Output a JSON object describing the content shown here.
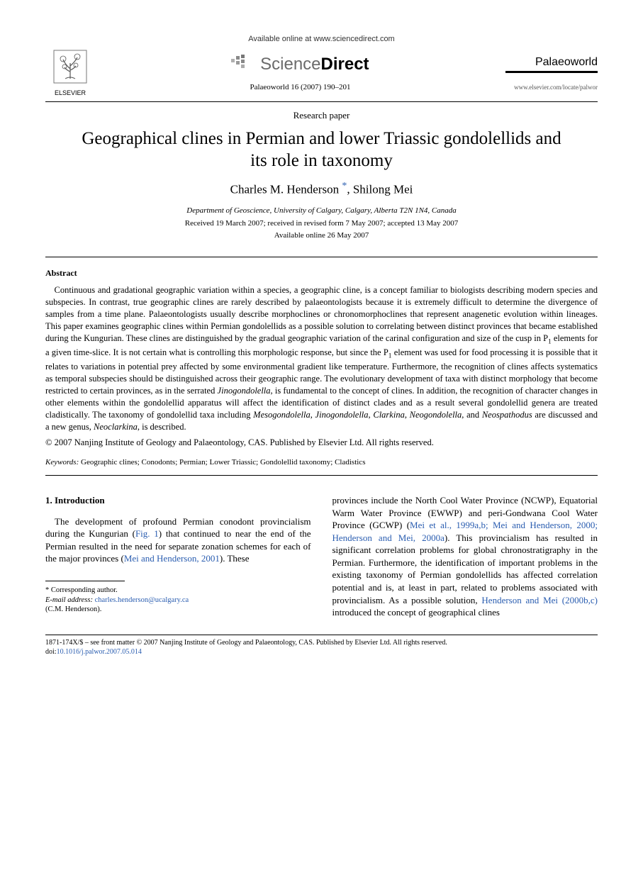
{
  "header": {
    "available_online": "Available online at www.sciencedirect.com",
    "sciencedirect_sci": "Science",
    "sciencedirect_dir": "Direct",
    "elsevier_label": "ELSEVIER",
    "journal_name": "Palaeoworld",
    "journal_ref": "Palaeoworld 16 (2007) 190–201",
    "journal_url": "www.elsevier.com/locate/palwor"
  },
  "paper": {
    "type": "Research paper",
    "title": "Geographical clines in Permian and lower Triassic gondolellids and its role in taxonomy",
    "author1": "Charles M. Henderson",
    "corr_mark": "*",
    "author2": "Shilong Mei",
    "affiliation": "Department of Geoscience, University of Calgary, Calgary, Alberta T2N 1N4, Canada",
    "dates": "Received 19 March 2007; received in revised form 7 May 2007; accepted 13 May 2007",
    "available": "Available online 26 May 2007"
  },
  "abstract": {
    "heading": "Abstract",
    "text": "Continuous and gradational geographic variation within a species, a geographic cline, is a concept familiar to biologists describing modern species and subspecies. In contrast, true geographic clines are rarely described by palaeontologists because it is extremely difficult to determine the divergence of samples from a time plane. Palaeontologists usually describe morphoclines or chronomorphoclines that represent anagenetic evolution within lineages. This paper examines geographic clines within Permian gondolellids as a possible solution to correlating between distinct provinces that became established during the Kungurian. These clines are distinguished by the gradual geographic variation of the carinal configuration and size of the cusp in P₁ elements for a given time-slice. It is not certain what is controlling this morphologic response, but since the P₁ element was used for food processing it is possible that it relates to variations in potential prey affected by some environmental gradient like temperature. Furthermore, the recognition of clines affects systematics as temporal subspecies should be distinguished across their geographic range. The evolutionary development of taxa with distinct morphology that become restricted to certain provinces, as in the serrated Jinogondolella, is fundamental to the concept of clines. In addition, the recognition of character changes in other elements within the gondolellid apparatus will affect the identification of distinct clades and as a result several gondolellid genera are treated cladistically. The taxonomy of gondolellid taxa including Mesogondolella, Jinogondolella, Clarkina, Neogondolella, and Neospathodus are discussed and a new genus, Neoclarkina, is described.",
    "copyright": "© 2007 Nanjing Institute of Geology and Palaeontology, CAS. Published by Elsevier Ltd. All rights reserved."
  },
  "keywords": {
    "label": "Keywords:",
    "text": " Geographic clines; Conodonts; Permian; Lower Triassic; Gondolellid taxonomy; Cladistics"
  },
  "body": {
    "section_head": "1.  Introduction",
    "col1_p1_a": "The development of profound Permian conodont provincialism during the Kungurian (",
    "col1_p1_fig": "Fig. 1",
    "col1_p1_b": ") that continued to near the end of the Permian resulted in the need for separate zonation schemes for each of the major provinces (",
    "col1_p1_cite": "Mei and Henderson, 2001",
    "col1_p1_c": "). These",
    "col2_p1_a": "provinces include the North Cool Water Province (NCWP), Equatorial Warm Water Province (EWWP) and peri-Gondwana Cool Water Province (GCWP) (",
    "col2_p1_cite1": "Mei et al., 1999a,b; Mei and Henderson, 2000; Henderson and Mei, 2000a",
    "col2_p1_b": "). This provincialism has resulted in significant correlation problems for global chronostratigraphy in the Permian. Furthermore, the identification of important problems in the existing taxonomy of Permian gondolellids has affected correlation potential and is, at least in part, related to problems associated with provincialism. As a possible solution, ",
    "col2_p1_cite2": "Henderson and Mei (2000b,c)",
    "col2_p1_c": " introduced the concept of geographical clines"
  },
  "footnote": {
    "corr_label": "* Corresponding author.",
    "email_label": "E-mail address:",
    "email": "charles.henderson@ucalgary.ca",
    "author_paren": "(C.M. Henderson)."
  },
  "bottom": {
    "issn_line": "1871-174X/$ – see front matter © 2007 Nanjing Institute of Geology and Palaeontology, CAS. Published by Elsevier Ltd. All rights reserved.",
    "doi_label": "doi:",
    "doi": "10.1016/j.palwor.2007.05.014"
  },
  "colors": {
    "link": "#2a5db0",
    "text": "#000000",
    "bg": "#ffffff"
  }
}
